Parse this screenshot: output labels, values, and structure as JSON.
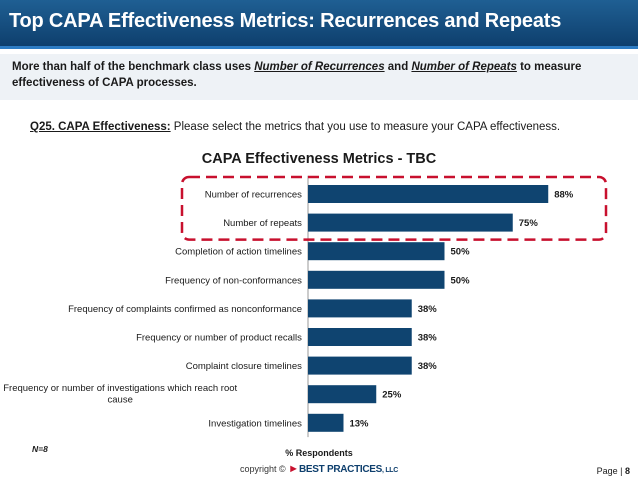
{
  "header": {
    "title": "Top CAPA Effectiveness Metrics:  Recurrences and Repeats"
  },
  "summary": {
    "part1": "More than half of the benchmark class uses ",
    "metric1": "Number of Recurrences",
    "part2": " and ",
    "metric2": "Number of Repeats",
    "part3": " to measure effectiveness of CAPA processes."
  },
  "question": {
    "label": "Q25. CAPA Effectiveness:",
    "text": "  Please select the metrics that you use to measure your CAPA effectiveness."
  },
  "colors": {
    "bar": "#0f4470",
    "highlight": "#c8102e"
  },
  "chart_data": {
    "type": "bar",
    "orientation": "horizontal",
    "title": "CAPA Effectiveness Metrics - TBC",
    "xlabel": "% Respondents",
    "ylabel": "",
    "xlim": [
      0,
      100
    ],
    "categories": [
      "Number of recurrences",
      "Number of repeats",
      "Completion of action timelines",
      "Frequency of non-conformances",
      "Frequency of complaints confirmed as nonconformance",
      "Frequency or number of product recalls",
      "Complaint closure timelines",
      "Frequency or number of investigations which reach root cause",
      "Investigation timelines"
    ],
    "category_lines": [
      [
        "Number of recurrences"
      ],
      [
        "Number of repeats"
      ],
      [
        "Completion of action timelines"
      ],
      [
        "Frequency of non-conformances"
      ],
      [
        "Frequency of complaints confirmed as nonconformance"
      ],
      [
        "Frequency or number of product recalls"
      ],
      [
        "Complaint closure timelines"
      ],
      [
        "Frequency or number of investigations which reach root",
        "cause"
      ],
      [
        "Investigation timelines"
      ]
    ],
    "values": [
      88,
      75,
      50,
      50,
      38,
      38,
      38,
      25,
      13
    ],
    "value_labels": [
      "88%",
      "75%",
      "50%",
      "50%",
      "38%",
      "38%",
      "38%",
      "25%",
      "13%"
    ],
    "highlighted": [
      0,
      1
    ],
    "grid": false,
    "legend": "none"
  },
  "note": "N=8",
  "footer": {
    "copyright": "copyright ©",
    "brand": "BEST PRACTICES",
    "suffix": ", LLC",
    "page_label": "Page",
    "page_number": "8"
  }
}
